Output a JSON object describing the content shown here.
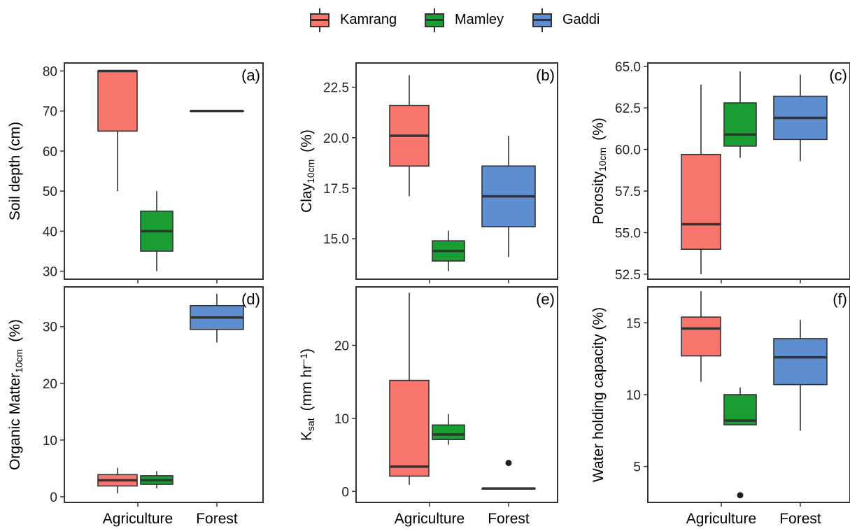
{
  "legend": {
    "items": [
      {
        "name": "Kamrang",
        "color": "#F8766D"
      },
      {
        "name": "Mamley",
        "color": "#1A9E33"
      },
      {
        "name": "Gaddi",
        "color": "#5F8ED0"
      }
    ]
  },
  "chart_data": [
    {
      "type": "box",
      "panel_label": "(a)",
      "ylabel": "Soil depth (cm)",
      "categories": [
        "",
        ""
      ],
      "ylim": [
        28,
        82
      ],
      "yticks": [
        30,
        40,
        50,
        60,
        70,
        80
      ],
      "series": [
        {
          "name": "Kamrang",
          "boxes": [
            {
              "category": 0,
              "min": 50,
              "q1": 65,
              "median": 80,
              "q3": 80,
              "max": 80
            }
          ]
        },
        {
          "name": "Mamley",
          "boxes": [
            {
              "category": 0,
              "min": 30,
              "q1": 35,
              "median": 40,
              "q3": 45,
              "max": 50
            }
          ]
        },
        {
          "name": "Gaddi",
          "boxes": [
            {
              "category": 1,
              "min": 70,
              "q1": 70,
              "median": 70,
              "q3": 70,
              "max": 70
            }
          ]
        }
      ]
    },
    {
      "type": "box",
      "panel_label": "(b)",
      "ylabel": "Clay",
      "ylabel_sub": "10cm",
      "ylabel_unit": "(%)",
      "categories": [
        "",
        ""
      ],
      "ylim": [
        13.0,
        23.7
      ],
      "yticks": [
        15.0,
        17.5,
        20.0,
        22.5
      ],
      "series": [
        {
          "name": "Kamrang",
          "boxes": [
            {
              "category": 0,
              "min": 17.1,
              "q1": 18.6,
              "median": 20.1,
              "q3": 21.6,
              "max": 23.1
            }
          ]
        },
        {
          "name": "Mamley",
          "boxes": [
            {
              "category": 0,
              "min": 13.4,
              "q1": 13.9,
              "median": 14.4,
              "q3": 14.9,
              "max": 15.4
            }
          ]
        },
        {
          "name": "Gaddi",
          "boxes": [
            {
              "category": 1,
              "min": 14.1,
              "q1": 15.6,
              "median": 17.1,
              "q3": 18.6,
              "max": 20.1
            }
          ]
        }
      ]
    },
    {
      "type": "box",
      "panel_label": "(c)",
      "ylabel": "Porosity",
      "ylabel_sub": "10cm",
      "ylabel_unit": "(%)",
      "categories": [
        "",
        ""
      ],
      "ylim": [
        52.2,
        65.2
      ],
      "yticks": [
        52.5,
        55.0,
        57.5,
        60.0,
        62.5,
        65.0
      ],
      "series": [
        {
          "name": "Kamrang",
          "boxes": [
            {
              "category": 0,
              "min": 52.5,
              "q1": 54.0,
              "median": 55.5,
              "q3": 59.7,
              "max": 63.9
            }
          ]
        },
        {
          "name": "Mamley",
          "boxes": [
            {
              "category": 0,
              "min": 59.5,
              "q1": 60.2,
              "median": 60.9,
              "q3": 62.8,
              "max": 64.7
            }
          ]
        },
        {
          "name": "Gaddi",
          "boxes": [
            {
              "category": 1,
              "min": 59.3,
              "q1": 60.6,
              "median": 61.9,
              "q3": 63.2,
              "max": 64.5
            }
          ]
        }
      ]
    },
    {
      "type": "box",
      "panel_label": "(d)",
      "ylabel": "Organic Matter",
      "ylabel_sub": "10cm",
      "ylabel_unit": "(%)",
      "categories": [
        "Agriculture",
        "Forest"
      ],
      "ylim": [
        -1,
        37
      ],
      "yticks": [
        0,
        10,
        20,
        30
      ],
      "series": [
        {
          "name": "Kamrang",
          "boxes": [
            {
              "category": 0,
              "min": 0.6,
              "q1": 1.9,
              "median": 2.9,
              "q3": 3.9,
              "max": 5.1
            }
          ]
        },
        {
          "name": "Mamley",
          "boxes": [
            {
              "category": 0,
              "min": 1.5,
              "q1": 2.2,
              "median": 2.9,
              "q3": 3.7,
              "max": 4.5
            }
          ]
        },
        {
          "name": "Gaddi",
          "boxes": [
            {
              "category": 1,
              "min": 27.2,
              "q1": 29.5,
              "median": 31.6,
              "q3": 33.7,
              "max": 35.8
            }
          ]
        }
      ]
    },
    {
      "type": "box",
      "panel_label": "(e)",
      "ylabel": "K",
      "ylabel_sub": "sat",
      "ylabel_unit": "(mm hr",
      "ylabel_sup": "−1",
      "ylabel_close": ")",
      "categories": [
        "Agriculture",
        "Forest"
      ],
      "ylim": [
        -1.5,
        28
      ],
      "yticks": [
        0,
        10,
        20
      ],
      "series": [
        {
          "name": "Kamrang",
          "boxes": [
            {
              "category": 0,
              "min": 0.9,
              "q1": 2.1,
              "median": 3.4,
              "q3": 15.2,
              "max": 27.2
            }
          ]
        },
        {
          "name": "Mamley",
          "boxes": [
            {
              "category": 0,
              "min": 6.4,
              "q1": 7.1,
              "median": 7.8,
              "q3": 9.1,
              "max": 10.6
            }
          ]
        },
        {
          "name": "Gaddi",
          "boxes": [
            {
              "category": 1,
              "min": 0.4,
              "q1": 0.4,
              "median": 0.4,
              "q3": 0.4,
              "max": 0.4,
              "outliers": [
                3.9
              ]
            }
          ]
        }
      ]
    },
    {
      "type": "box",
      "panel_label": "(f)",
      "ylabel": "Water holding capacity (%)",
      "categories": [
        "Agriculture",
        "Forest"
      ],
      "ylim": [
        2.5,
        17.5
      ],
      "yticks": [
        5,
        10,
        15
      ],
      "series": [
        {
          "name": "Kamrang",
          "boxes": [
            {
              "category": 0,
              "min": 10.9,
              "q1": 12.7,
              "median": 14.6,
              "q3": 15.4,
              "max": 17.2
            }
          ]
        },
        {
          "name": "Mamley",
          "boxes": [
            {
              "category": 0,
              "min": 7.9,
              "q1": 7.9,
              "median": 8.2,
              "q3": 10.0,
              "max": 10.5,
              "outliers": [
                3.0
              ]
            }
          ]
        },
        {
          "name": "Gaddi",
          "boxes": [
            {
              "category": 1,
              "min": 7.5,
              "q1": 10.7,
              "median": 12.6,
              "q3": 13.9,
              "max": 15.2
            }
          ]
        }
      ]
    }
  ]
}
